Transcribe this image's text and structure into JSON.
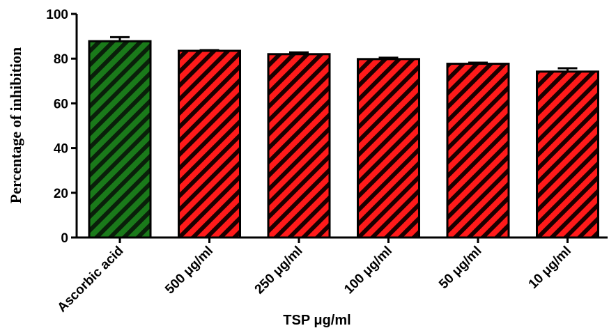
{
  "chart_data": {
    "type": "bar",
    "categories": [
      "Ascorbic acid",
      "500 μg/ml",
      "250 μg/ml",
      "100 μg/ml",
      "50 μg/ml",
      "10 μg/ml"
    ],
    "values": [
      87.8,
      83.5,
      82.0,
      79.8,
      77.7,
      74.2
    ],
    "errors": [
      1.8,
      0.3,
      0.8,
      0.6,
      0.5,
      1.5
    ],
    "bar_colors": [
      "#1a7a1a",
      "#ff1a1a",
      "#ff1a1a",
      "#ff1a1a",
      "#ff1a1a",
      "#ff1a1a"
    ],
    "hatch": "diagonal",
    "title": "",
    "xlabel": "TSP μg/ml",
    "ylabel": "Percentage of inhibition",
    "ylim": [
      0,
      100
    ],
    "yticks": [
      "0",
      "20",
      "40",
      "60",
      "80",
      "100"
    ],
    "grid": false
  }
}
